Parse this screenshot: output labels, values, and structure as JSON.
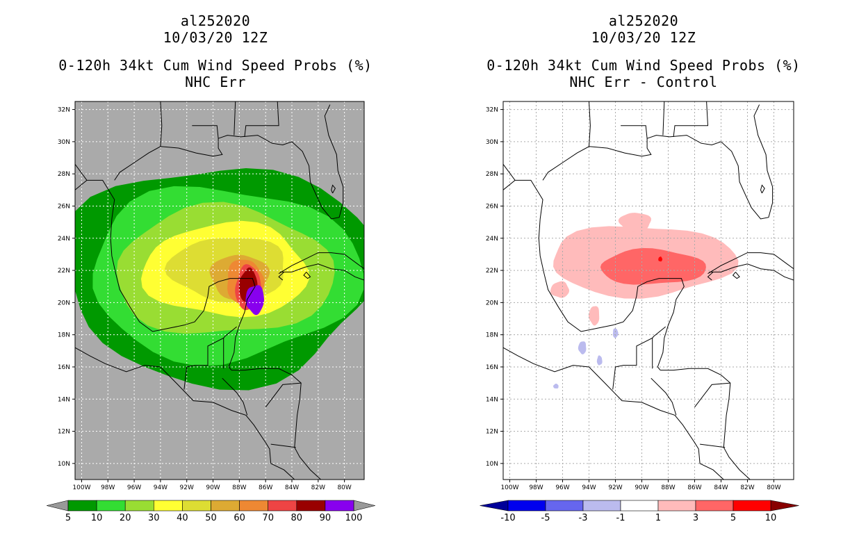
{
  "left_panel": {
    "storm_id": "al252020",
    "datetime": "10/03/20 12Z",
    "product": "0-120h 34kt Cum Wind Speed Probs (%)",
    "subtitle": "NHC Err",
    "background": "#aaaaaa"
  },
  "right_panel": {
    "storm_id": "al252020",
    "datetime": "10/03/20 12Z",
    "product": "0-120h 34kt Cum Wind Speed Probs (%)",
    "subtitle": "NHC Err - Control",
    "background": "#ffffff"
  },
  "axes": {
    "lat_ticks": [
      "32N",
      "30N",
      "28N",
      "26N",
      "24N",
      "22N",
      "20N",
      "18N",
      "16N",
      "14N",
      "12N",
      "10N"
    ],
    "lon_ticks": [
      "100W",
      "98W",
      "96W",
      "94W",
      "92W",
      "90W",
      "88W",
      "86W",
      "84W",
      "82W",
      "80W"
    ]
  },
  "left_colorbar": {
    "labels": [
      "5",
      "10",
      "20",
      "30",
      "40",
      "50",
      "60",
      "70",
      "80",
      "90",
      "100"
    ],
    "colors": [
      "#009900",
      "#33dd33",
      "#99dd33",
      "#ffff33",
      "#dddd33",
      "#ddaa33",
      "#ee8833",
      "#ee4444",
      "#990000",
      "#8800ee"
    ],
    "end_color": "#999999"
  },
  "right_colorbar": {
    "labels": [
      "-10",
      "-5",
      "-3",
      "-1",
      "1",
      "3",
      "5",
      "10"
    ],
    "colors": [
      "#0000ee",
      "#6666ee",
      "#bbbbee",
      "#ffffff",
      "#ffbbbb",
      "#ff6666",
      "#ff0000"
    ],
    "low_end_color": "#000099",
    "high_end_color": "#880000"
  },
  "chart_data": {
    "type": "map",
    "region": "Gulf of Mexico",
    "lat_range": [
      9,
      32.5
    ],
    "lon_range": [
      -100.5,
      -78.5
    ],
    "left_probability_contours": [
      {
        "level": 5,
        "color": "#009900",
        "center": [
          -89.5,
          21.8
        ],
        "radius_deg": [
          11.8,
          6.8
        ]
      },
      {
        "level": 10,
        "color": "#33dd33",
        "center": [
          -89.2,
          21.8
        ],
        "radius_deg": [
          10.3,
          5.4
        ]
      },
      {
        "level": 20,
        "color": "#99dd33",
        "center": [
          -89.2,
          21.9
        ],
        "radius_deg": [
          8.3,
          4.0
        ]
      },
      {
        "level": 30,
        "color": "#ffff33",
        "center": [
          -89.0,
          22.0
        ],
        "radius_deg": [
          6.3,
          2.9
        ]
      },
      {
        "level": 40,
        "color": "#dddd33",
        "center": [
          -88.8,
          22.1
        ],
        "radius_deg": [
          4.5,
          2.0
        ]
      },
      {
        "level": 50,
        "color": "#ddaa33",
        "center": [
          -88.0,
          21.6
        ],
        "radius_deg": [
          2.2,
          1.4
        ]
      },
      {
        "level": 60,
        "color": "#ee8833",
        "center": [
          -87.6,
          21.3
        ],
        "radius_deg": [
          1.4,
          1.4
        ]
      },
      {
        "level": 70,
        "color": "#ee4444",
        "center": [
          -87.3,
          20.9
        ],
        "radius_deg": [
          1.0,
          1.4
        ]
      },
      {
        "level": 80,
        "color": "#990000",
        "center": [
          -87.3,
          21.0
        ],
        "radius_deg": [
          0.7,
          1.1
        ]
      },
      {
        "level": 90,
        "color": "#8800ee",
        "center": [
          -86.8,
          20.2
        ],
        "radius_deg": [
          0.7,
          0.9
        ]
      }
    ],
    "right_difference_contours": [
      {
        "level": "1 to 3",
        "color": "#ffbbbb",
        "center": [
          -90.0,
          22.6
        ],
        "radius_deg": [
          7.0,
          2.2
        ]
      },
      {
        "level": "3 to 5",
        "color": "#ff6666",
        "center": [
          -89.2,
          22.2
        ],
        "radius_deg": [
          4.0,
          1.1
        ]
      },
      {
        "level": "5 to 10",
        "color": "#ff0000",
        "center": [
          -88.6,
          22.7
        ],
        "radius_deg": [
          0.15,
          0.15
        ]
      },
      {
        "level": "-3 to -1",
        "color": "#bbbbee",
        "center": [
          -94.5,
          17.2
        ],
        "radius_deg": [
          0.3,
          0.4
        ]
      }
    ]
  }
}
